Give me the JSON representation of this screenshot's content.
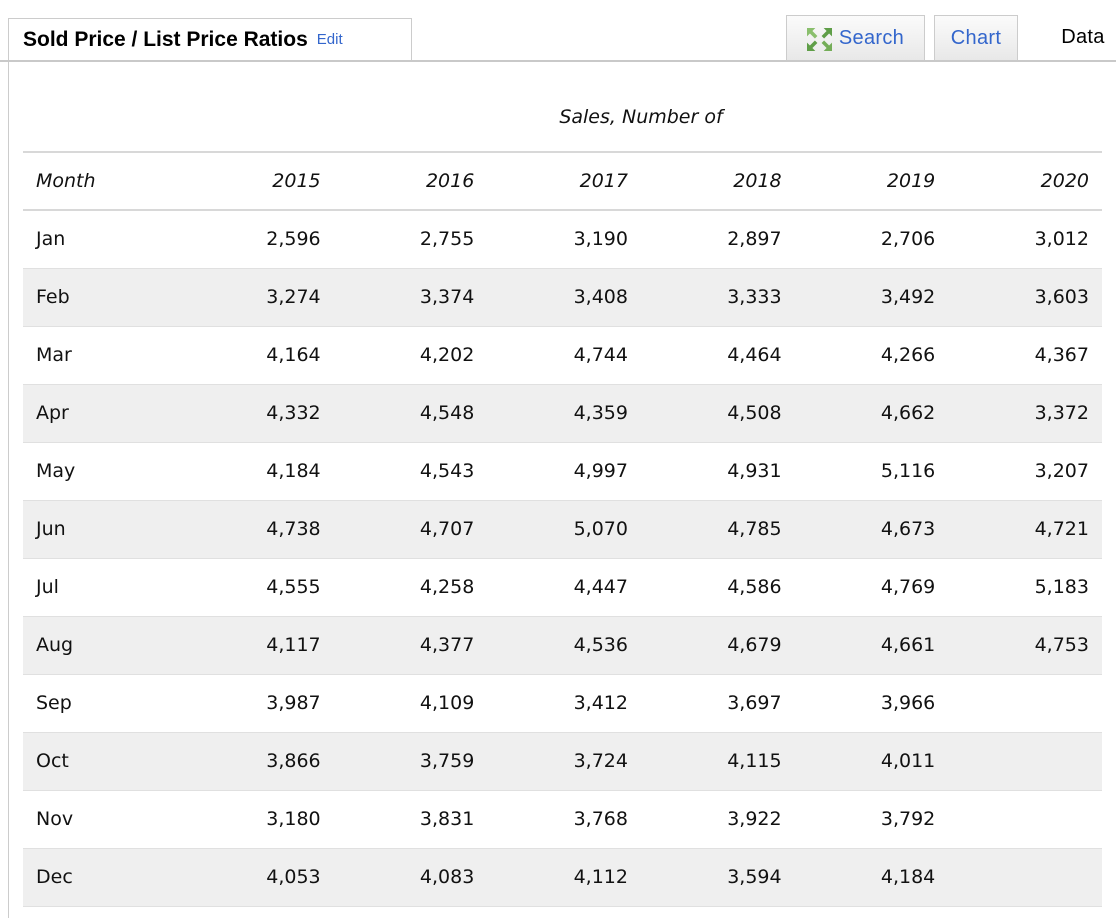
{
  "header": {
    "title": "Sold Price / List Price Ratios",
    "edit_label": "Edit",
    "tabs": [
      {
        "label": "Search",
        "icon": "expand-arrows-icon",
        "active": false
      },
      {
        "label": "Chart",
        "active": false
      },
      {
        "label": "Data",
        "active": true
      }
    ]
  },
  "table": {
    "caption": "Sales, Number of",
    "columns": [
      "Month",
      "2015",
      "2016",
      "2017",
      "2018",
      "2019",
      "2020"
    ],
    "rows": [
      {
        "month": "Jan",
        "values": [
          "2,596",
          "2,755",
          "3,190",
          "2,897",
          "2,706",
          "3,012"
        ]
      },
      {
        "month": "Feb",
        "values": [
          "3,274",
          "3,374",
          "3,408",
          "3,333",
          "3,492",
          "3,603"
        ]
      },
      {
        "month": "Mar",
        "values": [
          "4,164",
          "4,202",
          "4,744",
          "4,464",
          "4,266",
          "4,367"
        ]
      },
      {
        "month": "Apr",
        "values": [
          "4,332",
          "4,548",
          "4,359",
          "4,508",
          "4,662",
          "3,372"
        ]
      },
      {
        "month": "May",
        "values": [
          "4,184",
          "4,543",
          "4,997",
          "4,931",
          "5,116",
          "3,207"
        ]
      },
      {
        "month": "Jun",
        "values": [
          "4,738",
          "4,707",
          "5,070",
          "4,785",
          "4,673",
          "4,721"
        ]
      },
      {
        "month": "Jul",
        "values": [
          "4,555",
          "4,258",
          "4,447",
          "4,586",
          "4,769",
          "5,183"
        ]
      },
      {
        "month": "Aug",
        "values": [
          "4,117",
          "4,377",
          "4,536",
          "4,679",
          "4,661",
          "4,753"
        ]
      },
      {
        "month": "Sep",
        "values": [
          "3,987",
          "4,109",
          "3,412",
          "3,697",
          "3,966",
          ""
        ]
      },
      {
        "month": "Oct",
        "values": [
          "3,866",
          "3,759",
          "3,724",
          "4,115",
          "4,011",
          ""
        ]
      },
      {
        "month": "Nov",
        "values": [
          "3,180",
          "3,831",
          "3,768",
          "3,922",
          "3,792",
          ""
        ]
      },
      {
        "month": "Dec",
        "values": [
          "4,053",
          "4,083",
          "4,112",
          "3,594",
          "4,184",
          ""
        ]
      }
    ]
  },
  "colors": {
    "link_blue": "#3366cc",
    "row_stripe": "#efefef",
    "icon_green_dark": "#5f9e48",
    "icon_green_light": "#8abf6d"
  }
}
